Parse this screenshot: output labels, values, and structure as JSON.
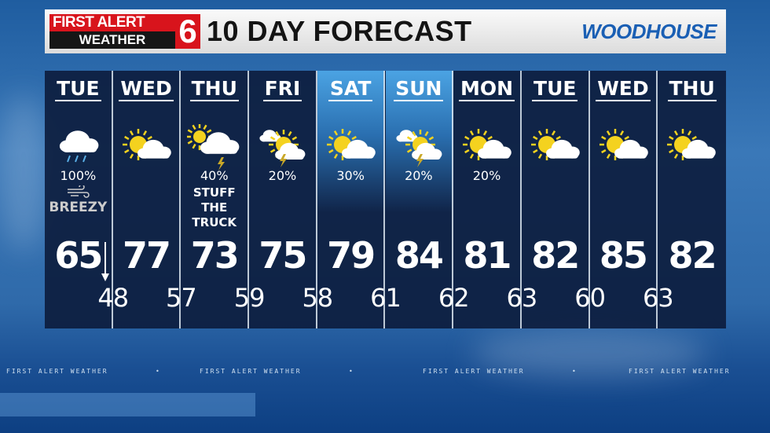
{
  "header": {
    "logo_top": "FIRST ALERT",
    "logo_bottom": "WEATHER",
    "logo_number": "6",
    "title": "10 DAY FORECAST",
    "sponsor": "WOODHOUSE"
  },
  "colors": {
    "logo_red": "#d8141c",
    "sponsor_blue": "#1a5fb4",
    "weekend_highlight": "#4ba3e3"
  },
  "days": [
    {
      "day": "TUE",
      "icon": "rain-cloud-icon",
      "pct": "100%",
      "extra": "BREEZY",
      "extra_icon": "wind-icon",
      "high": "65",
      "high_arrow": "arrow-down-icon"
    },
    {
      "day": "WED",
      "icon": "sun-cloud-icon",
      "pct": "",
      "high": "77"
    },
    {
      "day": "THU",
      "icon": "sun-cloud-storm-icon",
      "pct": "40%",
      "extra": "STUFF THE TRUCK",
      "high": "73"
    },
    {
      "day": "FRI",
      "icon": "cloud-sun-storm-icon",
      "pct": "20%",
      "high": "75"
    },
    {
      "day": "SAT",
      "icon": "sun-cloud-icon",
      "pct": "30%",
      "high": "79",
      "weekend": true
    },
    {
      "day": "SUN",
      "icon": "cloud-sun-storm-icon",
      "pct": "20%",
      "high": "84",
      "weekend": true
    },
    {
      "day": "MON",
      "icon": "sun-cloud-icon",
      "pct": "20%",
      "high": "81"
    },
    {
      "day": "TUE",
      "icon": "sun-cloud-icon",
      "pct": "",
      "high": "82"
    },
    {
      "day": "WED",
      "icon": "sun-cloud-icon",
      "pct": "",
      "high": "85"
    },
    {
      "day": "THU",
      "icon": "sun-cloud-icon",
      "pct": "",
      "high": "82"
    }
  ],
  "lows": [
    "48",
    "57",
    "59",
    "58",
    "61",
    "62",
    "63",
    "60",
    "63"
  ],
  "ticker": "FIRST ALERT WEATHER"
}
